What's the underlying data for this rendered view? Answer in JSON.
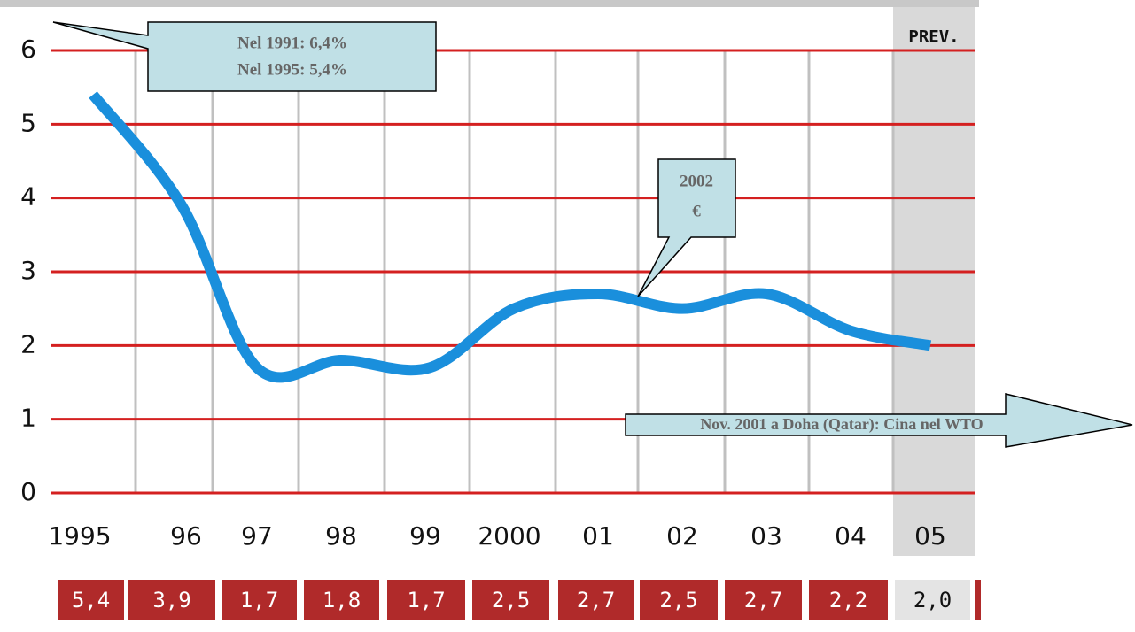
{
  "chart_data": {
    "type": "line",
    "categories": [
      "1995",
      "96",
      "97",
      "98",
      "99",
      "2000",
      "01",
      "02",
      "03",
      "04",
      "05"
    ],
    "values": [
      5.4,
      3.9,
      1.7,
      1.8,
      1.7,
      2.5,
      2.7,
      2.5,
      2.7,
      2.2,
      2.0
    ],
    "value_labels": [
      "5,4",
      "3,9",
      "1,7",
      "1,8",
      "1,7",
      "2,5",
      "2,7",
      "2,5",
      "2,7",
      "2,2",
      "2,0"
    ],
    "color": "#1a8fdc",
    "ylim": [
      0,
      6
    ],
    "yticks": [
      0,
      1,
      2,
      3,
      4,
      5,
      6
    ],
    "grid": true,
    "forecast_label": "PREV.",
    "annotations": [
      "Nel 1991: 6,4%",
      "Nel 1995: 5,4%",
      "2002",
      "€",
      "Nov. 2001 a Doha (Qatar): Cina nel WTO"
    ]
  }
}
